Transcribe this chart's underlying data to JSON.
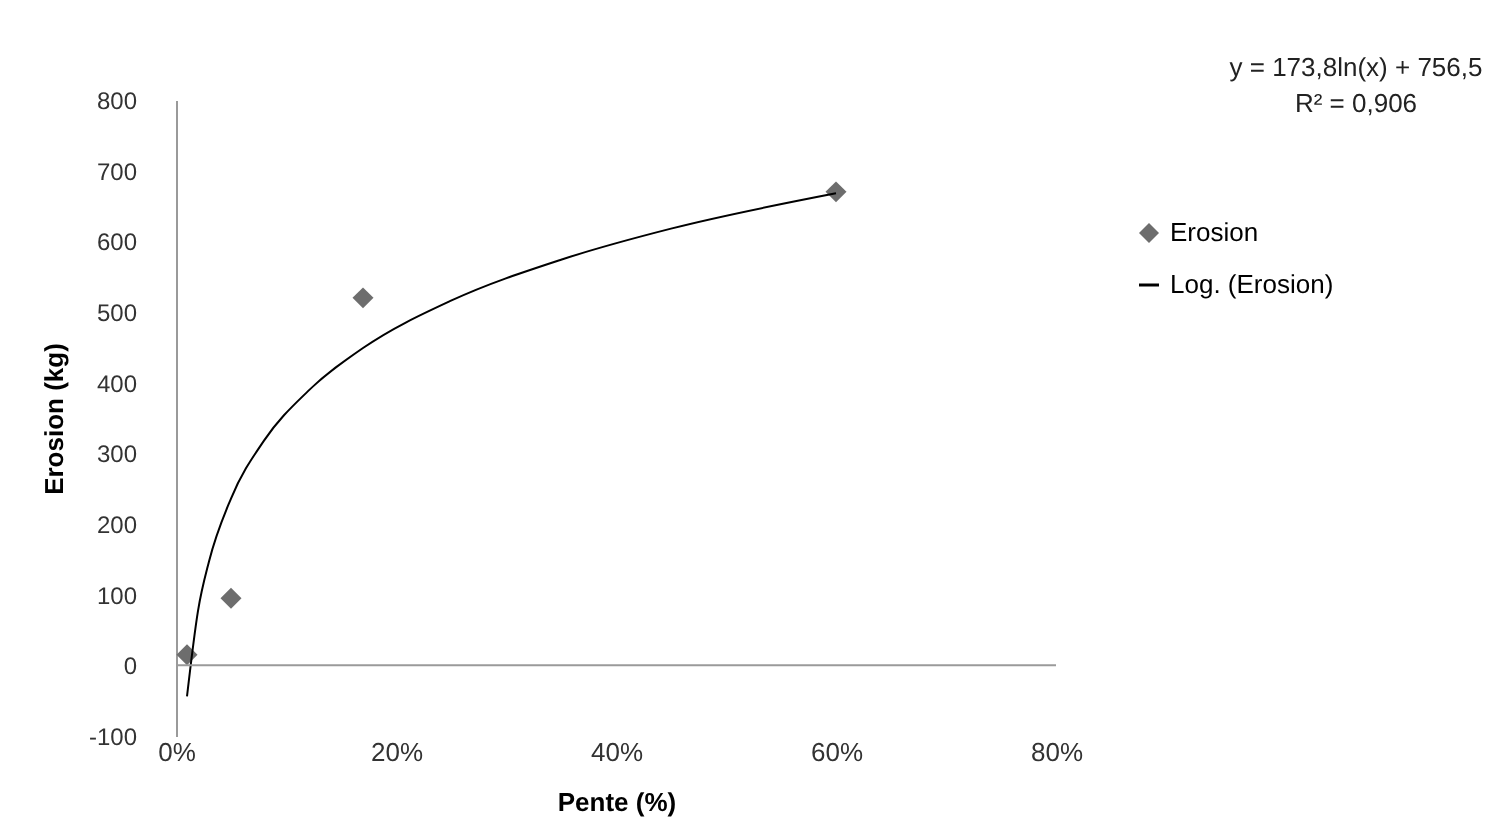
{
  "chart_data": {
    "type": "scatter",
    "xlabel": "Pente (%)",
    "ylabel": "Erosion (kg)",
    "xlim": [
      0,
      80
    ],
    "xticks": [
      {
        "value": 0,
        "label": "0%"
      },
      {
        "value": 20,
        "label": "20%"
      },
      {
        "value": 40,
        "label": "40%"
      },
      {
        "value": 60,
        "label": "60%"
      },
      {
        "value": 80,
        "label": "80%"
      }
    ],
    "ylim": [
      -100,
      800
    ],
    "yticks": [
      -100,
      0,
      100,
      200,
      300,
      400,
      500,
      600,
      700,
      800
    ],
    "grid": false,
    "legend": "right",
    "ref_lines": [
      {
        "axis": "y",
        "value": 0,
        "color": "#9a9a9a"
      }
    ],
    "annotations": [
      "y = 173,8ln(x) + 756,5",
      "R² = 0,906"
    ],
    "series": [
      {
        "name": "Erosion",
        "marker": "diamond",
        "color": "#6d6d6d",
        "x": [
          1,
          5,
          17,
          60
        ],
        "values": [
          15,
          95,
          520,
          670
        ]
      },
      {
        "name": "Log. (Erosion)",
        "type": "line",
        "color": "#000000",
        "line_style": "solid",
        "x": [
          1,
          2,
          3,
          5,
          8,
          12,
          17,
          25,
          35,
          45,
          60
        ],
        "values": [
          -44,
          77,
          147,
          236,
          318,
          388,
          449,
          516,
          574,
          618,
          668
        ]
      }
    ]
  }
}
